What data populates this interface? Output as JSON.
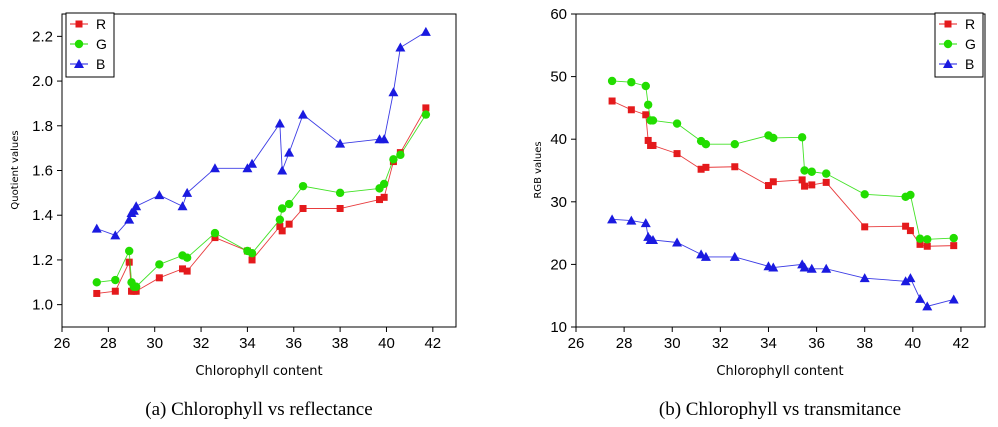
{
  "chart_data": [
    {
      "type": "scatter",
      "caption": "(a) Chlorophyll vs reflectance",
      "xlabel": "Chlorophyll content",
      "ylabel": "Quotient values",
      "xlim": [
        26,
        43
      ],
      "ylim": [
        0.9,
        2.3
      ],
      "xticks": [
        26,
        28,
        30,
        32,
        34,
        36,
        38,
        40,
        42
      ],
      "yticks": [
        1.0,
        1.2,
        1.4,
        1.6,
        1.8,
        2.0,
        2.2
      ],
      "legend_position": "top-left",
      "grid": false,
      "x": [
        27.5,
        28.3,
        28.9,
        29.0,
        29.1,
        29.2,
        30.2,
        31.2,
        31.4,
        32.6,
        34.0,
        34.2,
        35.4,
        35.5,
        35.8,
        36.4,
        38.0,
        39.7,
        39.9,
        40.3,
        40.6,
        41.7
      ],
      "series": [
        {
          "name": "R",
          "color": "#e41a1c",
          "marker": "square",
          "values": [
            1.05,
            1.06,
            1.19,
            1.06,
            1.06,
            1.06,
            1.12,
            1.16,
            1.15,
            1.3,
            1.24,
            1.2,
            1.35,
            1.33,
            1.36,
            1.43,
            1.43,
            1.47,
            1.48,
            1.64,
            1.68,
            1.88
          ]
        },
        {
          "name": "G",
          "color": "#22dd00",
          "marker": "circle",
          "values": [
            1.1,
            1.11,
            1.24,
            1.1,
            1.08,
            1.08,
            1.18,
            1.22,
            1.21,
            1.32,
            1.24,
            1.23,
            1.38,
            1.43,
            1.45,
            1.53,
            1.5,
            1.52,
            1.54,
            1.65,
            1.67,
            1.85
          ]
        },
        {
          "name": "B",
          "color": "#1a1ae0",
          "marker": "triangle",
          "values": [
            1.34,
            1.31,
            1.38,
            1.41,
            1.42,
            1.44,
            1.49,
            1.44,
            1.5,
            1.61,
            1.61,
            1.63,
            1.81,
            1.6,
            1.68,
            1.85,
            1.72,
            1.74,
            1.74,
            1.95,
            2.15,
            2.22
          ]
        }
      ]
    },
    {
      "type": "scatter",
      "caption": "(b) Chlorophyll vs transmitance",
      "xlabel": "Chlorophyll content",
      "ylabel": "RGB values",
      "xlim": [
        26,
        43
      ],
      "ylim": [
        10,
        60
      ],
      "xticks": [
        26,
        28,
        30,
        32,
        34,
        36,
        38,
        40,
        42
      ],
      "yticks": [
        10,
        20,
        30,
        40,
        50,
        60
      ],
      "legend_position": "top-right",
      "grid": false,
      "x": [
        27.5,
        28.3,
        28.9,
        29.0,
        29.1,
        29.2,
        30.2,
        31.2,
        31.4,
        32.6,
        34.0,
        34.2,
        35.4,
        35.5,
        35.8,
        36.4,
        38.0,
        39.7,
        39.9,
        40.3,
        40.6,
        41.7
      ],
      "series": [
        {
          "name": "R",
          "color": "#e41a1c",
          "marker": "square",
          "values": [
            46.1,
            44.7,
            43.9,
            39.8,
            39.0,
            39.0,
            37.7,
            35.2,
            35.5,
            35.6,
            32.6,
            33.2,
            33.5,
            32.5,
            32.7,
            33.1,
            26.0,
            26.1,
            25.4,
            23.2,
            22.9,
            23.0
          ]
        },
        {
          "name": "G",
          "color": "#22dd00",
          "marker": "circle",
          "values": [
            49.3,
            49.1,
            48.5,
            45.5,
            43.0,
            43.0,
            42.5,
            39.7,
            39.2,
            39.2,
            40.6,
            40.2,
            40.3,
            35.0,
            34.8,
            34.5,
            31.2,
            30.8,
            31.1,
            24.1,
            24.0,
            24.2
          ]
        },
        {
          "name": "B",
          "color": "#1a1ae0",
          "marker": "triangle",
          "values": [
            27.2,
            27.0,
            26.6,
            24.4,
            23.9,
            23.9,
            23.5,
            21.6,
            21.2,
            21.2,
            19.7,
            19.5,
            20.0,
            19.5,
            19.3,
            19.3,
            17.8,
            17.3,
            17.8,
            14.5,
            13.3,
            14.4
          ]
        }
      ]
    }
  ]
}
